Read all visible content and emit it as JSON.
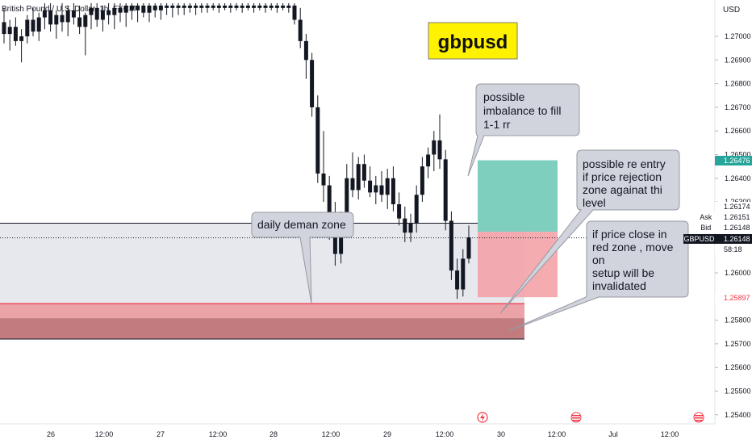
{
  "header": {
    "symbol_label": "British Pound / U.S. Dollar, 1h, FXCM",
    "currency": "USD"
  },
  "chart_data": {
    "type": "candlestick",
    "symbol": "GBPUSD",
    "timeframe": "1h",
    "currency": "USD",
    "ylim": [
      1.2535,
      1.275
    ],
    "y_ticks": [
      "1.27000",
      "1.26900",
      "1.26800",
      "1.26700",
      "1.26600",
      "1.26500",
      "1.26400",
      "1.26300",
      "1.26000",
      "1.25800",
      "1.25700",
      "1.25600",
      "1.25500",
      "1.25400"
    ],
    "x_ticks": [
      "26",
      "12:00",
      "27",
      "12:00",
      "28",
      "12:00",
      "29",
      "12:00",
      "30",
      "12:00",
      "Jul",
      "12:00"
    ],
    "price_labels": [
      {
        "label": "",
        "value": "1.26476",
        "color": "#26a69a",
        "text_color": "#ffffff"
      },
      {
        "label": "",
        "value": "1.26174",
        "color": "#ffffff",
        "text_color": "#131722"
      },
      {
        "label": "Ask",
        "value": "1.26151",
        "color": "#ffffff",
        "text_color": "#131722"
      },
      {
        "label": "Bid",
        "value": "1.26148",
        "color": "#ffffff",
        "text_color": "#131722"
      },
      {
        "label": "GBPUSD",
        "value": "1.26148",
        "color": "#131722",
        "text_color": "#ffffff"
      },
      {
        "label": "",
        "value": "58:18",
        "color": "#ffffff",
        "text_color": "#131722"
      },
      {
        "label": "",
        "value": "1.25897",
        "color": "#ffffff",
        "text_color": "#f23645"
      }
    ],
    "last_price": 1.26148,
    "zones": {
      "demand_zone": {
        "top": 1.2621,
        "bottom": 1.2587,
        "color": "#e6e8ee"
      },
      "red_zone": {
        "top": 1.2587,
        "bottom": 1.2572,
        "color": "#c27c80"
      },
      "target": {
        "top": 1.26476,
        "bottom": 1.26174,
        "color": "#7fcfbf"
      },
      "stop": {
        "top": 1.26174,
        "bottom": 1.25897,
        "color": "#f3a3a9"
      }
    },
    "candles": [
      {
        "o": 1.2706,
        "h": 1.2712,
        "l": 1.2697,
        "c": 1.2701
      },
      {
        "o": 1.2701,
        "h": 1.2707,
        "l": 1.2694,
        "c": 1.2704
      },
      {
        "o": 1.2704,
        "h": 1.2708,
        "l": 1.2696,
        "c": 1.2698
      },
      {
        "o": 1.2698,
        "h": 1.2703,
        "l": 1.2689,
        "c": 1.27
      },
      {
        "o": 1.27,
        "h": 1.2709,
        "l": 1.2697,
        "c": 1.2707
      },
      {
        "o": 1.2707,
        "h": 1.2712,
        "l": 1.27,
        "c": 1.2702
      },
      {
        "o": 1.2702,
        "h": 1.271,
        "l": 1.2698,
        "c": 1.2708
      },
      {
        "o": 1.2708,
        "h": 1.2714,
        "l": 1.2703,
        "c": 1.2711
      },
      {
        "o": 1.2711,
        "h": 1.2714,
        "l": 1.2702,
        "c": 1.2705
      },
      {
        "o": 1.2705,
        "h": 1.2711,
        "l": 1.2699,
        "c": 1.2709
      },
      {
        "o": 1.2709,
        "h": 1.2714,
        "l": 1.2702,
        "c": 1.2706
      },
      {
        "o": 1.2706,
        "h": 1.2713,
        "l": 1.27,
        "c": 1.2711
      },
      {
        "o": 1.2711,
        "h": 1.2714,
        "l": 1.2705,
        "c": 1.2708
      },
      {
        "o": 1.2708,
        "h": 1.2713,
        "l": 1.2701,
        "c": 1.2704
      },
      {
        "o": 1.2704,
        "h": 1.271,
        "l": 1.2692,
        "c": 1.2709
      },
      {
        "o": 1.2709,
        "h": 1.2714,
        "l": 1.2703,
        "c": 1.2712
      },
      {
        "o": 1.2712,
        "h": 1.2714,
        "l": 1.2704,
        "c": 1.2707
      },
      {
        "o": 1.2707,
        "h": 1.2713,
        "l": 1.2702,
        "c": 1.2711
      },
      {
        "o": 1.2711,
        "h": 1.2714,
        "l": 1.2705,
        "c": 1.2709
      },
      {
        "o": 1.2709,
        "h": 1.2714,
        "l": 1.2703,
        "c": 1.2712
      },
      {
        "o": 1.2712,
        "h": 1.2714,
        "l": 1.2706,
        "c": 1.271
      },
      {
        "o": 1.271,
        "h": 1.2714,
        "l": 1.2704,
        "c": 1.2713
      },
      {
        "o": 1.2713,
        "h": 1.2714,
        "l": 1.2707,
        "c": 1.2711
      },
      {
        "o": 1.2711,
        "h": 1.2714,
        "l": 1.2706,
        "c": 1.2713
      },
      {
        "o": 1.2713,
        "h": 1.2714,
        "l": 1.2708,
        "c": 1.271
      },
      {
        "o": 1.271,
        "h": 1.2714,
        "l": 1.2706,
        "c": 1.2713
      },
      {
        "o": 1.2713,
        "h": 1.2714,
        "l": 1.2708,
        "c": 1.2711
      },
      {
        "o": 1.2711,
        "h": 1.2714,
        "l": 1.2707,
        "c": 1.2713
      },
      {
        "o": 1.2713,
        "h": 1.2714,
        "l": 1.2709,
        "c": 1.2712
      },
      {
        "o": 1.2712,
        "h": 1.2714,
        "l": 1.2708,
        "c": 1.2713
      },
      {
        "o": 1.2713,
        "h": 1.2714,
        "l": 1.2709,
        "c": 1.2712
      },
      {
        "o": 1.2712,
        "h": 1.2714,
        "l": 1.2709,
        "c": 1.2713
      },
      {
        "o": 1.2713,
        "h": 1.2714,
        "l": 1.271,
        "c": 1.2712
      },
      {
        "o": 1.2712,
        "h": 1.2714,
        "l": 1.2709,
        "c": 1.2713
      },
      {
        "o": 1.2713,
        "h": 1.2714,
        "l": 1.271,
        "c": 1.2712
      },
      {
        "o": 1.2712,
        "h": 1.2714,
        "l": 1.271,
        "c": 1.2713
      },
      {
        "o": 1.2713,
        "h": 1.2714,
        "l": 1.2711,
        "c": 1.2712
      },
      {
        "o": 1.2712,
        "h": 1.2714,
        "l": 1.271,
        "c": 1.2713
      },
      {
        "o": 1.2713,
        "h": 1.2714,
        "l": 1.2711,
        "c": 1.2712
      },
      {
        "o": 1.2712,
        "h": 1.2714,
        "l": 1.271,
        "c": 1.2713
      },
      {
        "o": 1.2713,
        "h": 1.2714,
        "l": 1.2711,
        "c": 1.2712
      },
      {
        "o": 1.2712,
        "h": 1.2714,
        "l": 1.271,
        "c": 1.2713
      },
      {
        "o": 1.2713,
        "h": 1.2714,
        "l": 1.2711,
        "c": 1.2712
      },
      {
        "o": 1.2712,
        "h": 1.2714,
        "l": 1.271,
        "c": 1.2713
      },
      {
        "o": 1.2713,
        "h": 1.2714,
        "l": 1.2711,
        "c": 1.2712
      },
      {
        "o": 1.2712,
        "h": 1.2714,
        "l": 1.271,
        "c": 1.2713
      },
      {
        "o": 1.2713,
        "h": 1.2714,
        "l": 1.2711,
        "c": 1.2712
      },
      {
        "o": 1.2712,
        "h": 1.2714,
        "l": 1.271,
        "c": 1.2713
      },
      {
        "o": 1.2713,
        "h": 1.2714,
        "l": 1.2711,
        "c": 1.2712
      },
      {
        "o": 1.2712,
        "h": 1.2714,
        "l": 1.271,
        "c": 1.2713
      },
      {
        "o": 1.2713,
        "h": 1.2714,
        "l": 1.2705,
        "c": 1.2707
      },
      {
        "o": 1.2707,
        "h": 1.2712,
        "l": 1.2695,
        "c": 1.2698
      },
      {
        "o": 1.2698,
        "h": 1.2701,
        "l": 1.2682,
        "c": 1.269
      },
      {
        "o": 1.269,
        "h": 1.2693,
        "l": 1.2666,
        "c": 1.267
      },
      {
        "o": 1.267,
        "h": 1.2675,
        "l": 1.2638,
        "c": 1.2642
      },
      {
        "o": 1.2642,
        "h": 1.266,
        "l": 1.263,
        "c": 1.2637
      },
      {
        "o": 1.2637,
        "h": 1.2641,
        "l": 1.2614,
        "c": 1.2618
      },
      {
        "o": 1.2618,
        "h": 1.263,
        "l": 1.2603,
        "c": 1.2608
      },
      {
        "o": 1.2608,
        "h": 1.2626,
        "l": 1.2604,
        "c": 1.2622
      },
      {
        "o": 1.2622,
        "h": 1.2646,
        "l": 1.2618,
        "c": 1.264
      },
      {
        "o": 1.264,
        "h": 1.2651,
        "l": 1.2632,
        "c": 1.2635
      },
      {
        "o": 1.2635,
        "h": 1.2649,
        "l": 1.2631,
        "c": 1.2646
      },
      {
        "o": 1.2646,
        "h": 1.265,
        "l": 1.2636,
        "c": 1.2639
      },
      {
        "o": 1.2639,
        "h": 1.2645,
        "l": 1.2632,
        "c": 1.2634
      },
      {
        "o": 1.2634,
        "h": 1.2641,
        "l": 1.2629,
        "c": 1.2637
      },
      {
        "o": 1.2637,
        "h": 1.2643,
        "l": 1.263,
        "c": 1.2633
      },
      {
        "o": 1.2633,
        "h": 1.2644,
        "l": 1.2627,
        "c": 1.264
      },
      {
        "o": 1.264,
        "h": 1.2645,
        "l": 1.2626,
        "c": 1.2629
      },
      {
        "o": 1.2629,
        "h": 1.2634,
        "l": 1.262,
        "c": 1.2623
      },
      {
        "o": 1.2623,
        "h": 1.2628,
        "l": 1.2613,
        "c": 1.2617
      },
      {
        "o": 1.2617,
        "h": 1.2625,
        "l": 1.2613,
        "c": 1.2621
      },
      {
        "o": 1.2621,
        "h": 1.2637,
        "l": 1.2617,
        "c": 1.2633
      },
      {
        "o": 1.2633,
        "h": 1.2649,
        "l": 1.263,
        "c": 1.2645
      },
      {
        "o": 1.2645,
        "h": 1.2653,
        "l": 1.264,
        "c": 1.265
      },
      {
        "o": 1.265,
        "h": 1.266,
        "l": 1.2643,
        "c": 1.2656
      },
      {
        "o": 1.2656,
        "h": 1.2667,
        "l": 1.2644,
        "c": 1.2648
      },
      {
        "o": 1.2648,
        "h": 1.2652,
        "l": 1.2618,
        "c": 1.2622
      },
      {
        "o": 1.2622,
        "h": 1.2626,
        "l": 1.2597,
        "c": 1.2601
      },
      {
        "o": 1.2601,
        "h": 1.2606,
        "l": 1.2589,
        "c": 1.2593
      },
      {
        "o": 1.2593,
        "h": 1.261,
        "l": 1.259,
        "c": 1.2606
      },
      {
        "o": 1.2606,
        "h": 1.262,
        "l": 1.2604,
        "c": 1.2615
      }
    ]
  },
  "title_box": {
    "text": "gbpusd",
    "color": "#fff200"
  },
  "callouts": [
    {
      "id": "imbalance",
      "lines": [
        "possible",
        "imbalance to fill",
        "1-1 rr"
      ]
    },
    {
      "id": "reentry",
      "lines": [
        "possible re entry",
        "if price rejection",
        "zone againat thi",
        "level"
      ]
    },
    {
      "id": "demand",
      "lines": [
        "daily deman zone"
      ]
    },
    {
      "id": "redzone",
      "lines": [
        "if price close in",
        "red zone , move",
        "on",
        "setup will be",
        "invalidated"
      ]
    }
  ]
}
